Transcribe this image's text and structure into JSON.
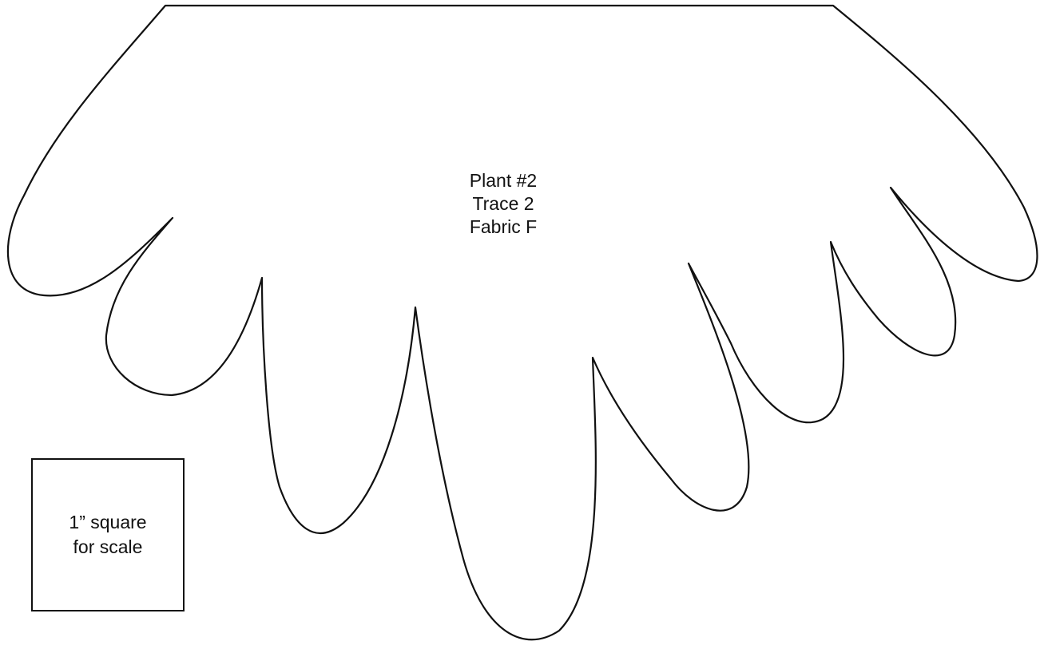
{
  "pattern": {
    "label_lines": [
      "Plant #2",
      "Trace 2",
      "Fabric F"
    ],
    "stroke_color": "#111111",
    "background_color": "#ffffff"
  },
  "scale_square": {
    "line1": "1” square",
    "line2": "for scale"
  }
}
